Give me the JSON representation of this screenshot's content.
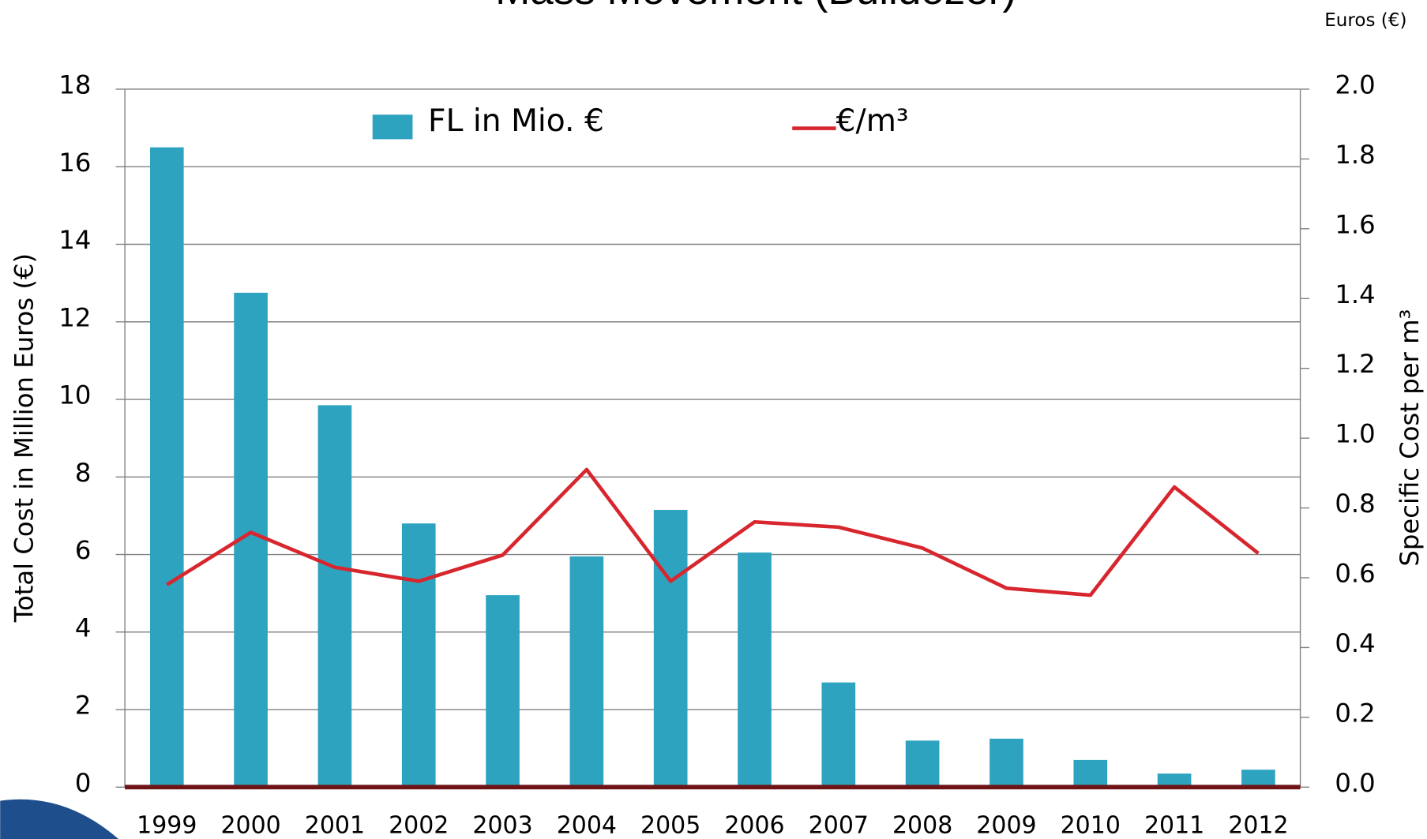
{
  "chart_data": {
    "type": "bar",
    "title": "Mass Movement (Bulldozer)",
    "corner_label": "Euros (€)",
    "y_label": "Total Cost in Million Euros (€)",
    "y2_label": "Specific Cost per m³",
    "categories": [
      "1999",
      "2000",
      "2001",
      "2002",
      "2003",
      "2004",
      "2005",
      "2006",
      "2007",
      "2008",
      "2009",
      "2010",
      "2011",
      "2012"
    ],
    "series": [
      {
        "name": "FL in Mio. €",
        "type": "bar",
        "color": "#2ea3c0",
        "values": [
          16.5,
          12.75,
          9.85,
          6.8,
          4.95,
          5.95,
          7.15,
          6.05,
          2.7,
          1.2,
          1.25,
          0.7,
          0.35,
          0.45
        ]
      },
      {
        "name": "€/m³",
        "type": "line",
        "axis": "y2",
        "color": "#d7262e",
        "values": [
          0.58,
          0.73,
          0.63,
          0.59,
          0.665,
          0.91,
          0.59,
          0.76,
          0.745,
          0.685,
          0.57,
          0.55,
          0.86,
          0.67
        ]
      }
    ],
    "ylim": [
      0,
      18
    ],
    "yticks": [
      0,
      2,
      4,
      6,
      8,
      10,
      12,
      14,
      16,
      18
    ],
    "y2lim": [
      0,
      2
    ],
    "y2ticks": [
      {
        "value": 0,
        "label": "0.0"
      },
      0.2,
      0.4,
      0.6,
      0.8,
      {
        "value": 1,
        "label": "1.0"
      },
      1.2,
      1.4,
      1.6,
      1.8,
      {
        "value": 2,
        "label": "2.0"
      }
    ],
    "grid": true,
    "legend": "top"
  }
}
